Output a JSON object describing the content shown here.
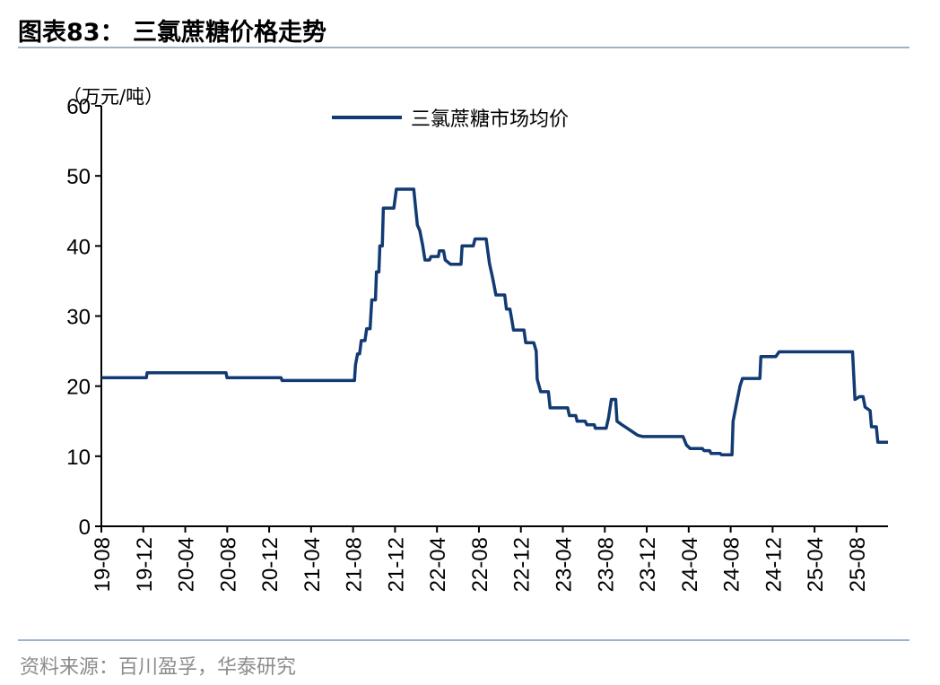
{
  "figure": {
    "title": "图表83：  三氯蔗糖价格走势",
    "source": "资料来源：百川盈孚，华泰研究"
  },
  "chart_data": {
    "type": "line",
    "unit_label": "（万元/吨）",
    "ylim": [
      0,
      60
    ],
    "yticks": [
      0,
      10,
      20,
      30,
      40,
      50,
      60
    ],
    "xticks": [
      "19-08",
      "19-12",
      "20-04",
      "20-08",
      "20-12",
      "21-04",
      "21-08",
      "21-12",
      "22-04",
      "22-08",
      "22-12",
      "23-04",
      "23-08",
      "23-12",
      "24-04",
      "24-08",
      "24-12",
      "25-04",
      "25-08"
    ],
    "xlim": [
      "2019-08",
      "2025-11"
    ],
    "legend_position": "top",
    "series_color": "#123a73",
    "series": [
      {
        "name": "三氯蔗糖市场均价",
        "points": [
          [
            "2019-08-01",
            21.2
          ],
          [
            "2019-09-15",
            21.2
          ],
          [
            "2019-11-01",
            21.2
          ],
          [
            "2019-12-10",
            21.2
          ],
          [
            "2019-12-12",
            21.9
          ],
          [
            "2020-02-01",
            21.9
          ],
          [
            "2020-05-01",
            21.9
          ],
          [
            "2020-07-28",
            21.9
          ],
          [
            "2020-07-31",
            21.2
          ],
          [
            "2020-10-01",
            21.2
          ],
          [
            "2021-01-05",
            21.2
          ],
          [
            "2021-01-08",
            20.8
          ],
          [
            "2021-04-01",
            20.8
          ],
          [
            "2021-08-05",
            20.8
          ],
          [
            "2021-08-08",
            23.0
          ],
          [
            "2021-08-14",
            24.6
          ],
          [
            "2021-08-20",
            24.6
          ],
          [
            "2021-08-25",
            26.5
          ],
          [
            "2021-09-05",
            26.5
          ],
          [
            "2021-09-10",
            28.2
          ],
          [
            "2021-09-20",
            28.2
          ],
          [
            "2021-09-25",
            32.3
          ],
          [
            "2021-10-05",
            32.3
          ],
          [
            "2021-10-08",
            36.3
          ],
          [
            "2021-10-15",
            36.3
          ],
          [
            "2021-10-18",
            40.0
          ],
          [
            "2021-10-25",
            40.0
          ],
          [
            "2021-10-28",
            45.4
          ],
          [
            "2021-11-28",
            45.4
          ],
          [
            "2021-12-05",
            48.1
          ],
          [
            "2022-01-25",
            48.1
          ],
          [
            "2022-02-05",
            43.0
          ],
          [
            "2022-02-12",
            42.2
          ],
          [
            "2022-02-20",
            40.2
          ],
          [
            "2022-02-27",
            38.0
          ],
          [
            "2022-03-10",
            38.0
          ],
          [
            "2022-03-14",
            38.5
          ],
          [
            "2022-04-05",
            38.5
          ],
          [
            "2022-04-08",
            39.3
          ],
          [
            "2022-04-20",
            39.3
          ],
          [
            "2022-04-25",
            38.0
          ],
          [
            "2022-05-10",
            37.4
          ],
          [
            "2022-06-10",
            37.4
          ],
          [
            "2022-06-13",
            40.0
          ],
          [
            "2022-07-15",
            40.0
          ],
          [
            "2022-07-20",
            41.0
          ],
          [
            "2022-08-22",
            41.0
          ],
          [
            "2022-09-01",
            37.5
          ],
          [
            "2022-09-08",
            36.0
          ],
          [
            "2022-09-12",
            35.0
          ],
          [
            "2022-09-20",
            33.0
          ],
          [
            "2022-10-15",
            33.0
          ],
          [
            "2022-10-20",
            31.0
          ],
          [
            "2022-10-30",
            31.0
          ],
          [
            "2022-11-05",
            29.5
          ],
          [
            "2022-11-10",
            28.0
          ],
          [
            "2022-12-10",
            28.0
          ],
          [
            "2022-12-15",
            26.2
          ],
          [
            "2023-01-08",
            26.2
          ],
          [
            "2023-01-15",
            25.0
          ],
          [
            "2023-01-18",
            21.0
          ],
          [
            "2023-01-28",
            19.2
          ],
          [
            "2023-02-20",
            19.2
          ],
          [
            "2023-02-25",
            16.9
          ],
          [
            "2023-04-15",
            16.9
          ],
          [
            "2023-04-20",
            15.8
          ],
          [
            "2023-05-08",
            15.8
          ],
          [
            "2023-05-12",
            15.0
          ],
          [
            "2023-06-05",
            15.0
          ],
          [
            "2023-06-10",
            14.5
          ],
          [
            "2023-07-01",
            14.5
          ],
          [
            "2023-07-04",
            14.0
          ],
          [
            "2023-08-05",
            14.0
          ],
          [
            "2023-08-12",
            15.5
          ],
          [
            "2023-08-20",
            18.1
          ],
          [
            "2023-09-02",
            18.1
          ],
          [
            "2023-09-06",
            15.0
          ],
          [
            "2023-09-20",
            14.5
          ],
          [
            "2023-10-05",
            14.0
          ],
          [
            "2023-10-20",
            13.5
          ],
          [
            "2023-11-05",
            13.0
          ],
          [
            "2023-11-20",
            12.8
          ],
          [
            "2024-03-15",
            12.8
          ],
          [
            "2024-03-25",
            11.6
          ],
          [
            "2024-04-05",
            11.1
          ],
          [
            "2024-05-10",
            11.1
          ],
          [
            "2024-05-15",
            10.8
          ],
          [
            "2024-06-01",
            10.8
          ],
          [
            "2024-06-05",
            10.4
          ],
          [
            "2024-07-01",
            10.4
          ],
          [
            "2024-07-05",
            10.2
          ],
          [
            "2024-08-05",
            10.2
          ],
          [
            "2024-08-08",
            15.0
          ],
          [
            "2024-08-20",
            18.0
          ],
          [
            "2024-08-28",
            20.0
          ],
          [
            "2024-09-05",
            21.1
          ],
          [
            "2024-10-25",
            21.1
          ],
          [
            "2024-10-28",
            24.2
          ],
          [
            "2024-12-10",
            24.2
          ],
          [
            "2024-12-20",
            24.9
          ],
          [
            "2025-07-20",
            24.9
          ],
          [
            "2025-07-27",
            18.1
          ],
          [
            "2025-08-10",
            18.5
          ],
          [
            "2025-08-20",
            18.5
          ],
          [
            "2025-08-26",
            17.0
          ],
          [
            "2025-09-10",
            16.5
          ],
          [
            "2025-09-14",
            14.2
          ],
          [
            "2025-09-28",
            14.2
          ],
          [
            "2025-10-02",
            12.0
          ],
          [
            "2025-11-01",
            12.0
          ]
        ]
      }
    ]
  }
}
